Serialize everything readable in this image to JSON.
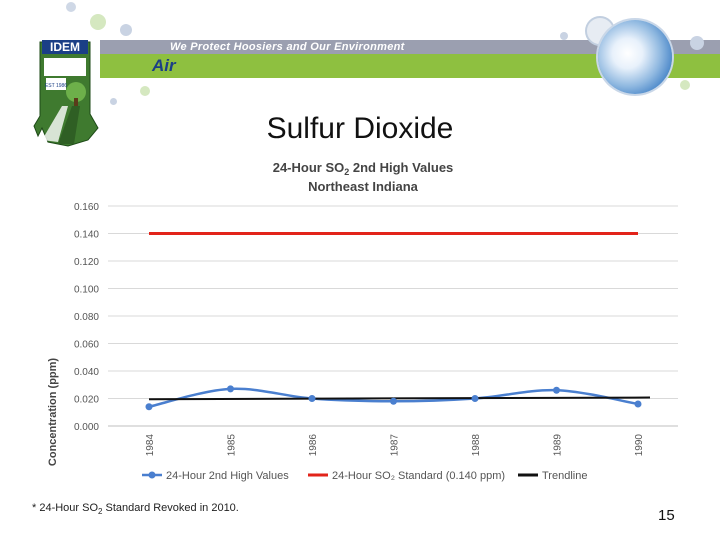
{
  "header": {
    "slogan": "We Protect Hoosiers and Our Environment",
    "org": "IDEM",
    "section": "Air",
    "est": "EST 1986"
  },
  "slide": {
    "title": "Sulfur Dioxide",
    "footnote_prefix": "* 24-Hour SO",
    "footnote_sub": "2",
    "footnote_suffix": " Standard Revoked in 2010.",
    "page_number": "15"
  },
  "chart_data": {
    "type": "line",
    "title_line1_prefix": "24-Hour SO",
    "title_line1_sub": "2",
    "title_line1_suffix": " 2nd High Values",
    "title_line2": "Northeast Indiana",
    "ylabel": "Concentration (ppm)",
    "xlabel": "",
    "ylim": [
      0,
      0.16
    ],
    "yticks": [
      "0.000",
      "0.020",
      "0.040",
      "0.060",
      "0.080",
      "0.100",
      "0.120",
      "0.140",
      "0.160"
    ],
    "categories": [
      "1984",
      "1985",
      "1986",
      "1987",
      "1988",
      "1989",
      "1990"
    ],
    "series": [
      {
        "name": "24-Hour 2nd High Values",
        "values": [
          0.014,
          0.027,
          0.02,
          0.018,
          0.02,
          0.026,
          0.016
        ],
        "color": "#4a7fcf"
      },
      {
        "name": "24-Hour SO₂ Standard (0.140 ppm)",
        "values": [
          0.14,
          0.14,
          0.14,
          0.14,
          0.14,
          0.14,
          0.14
        ],
        "color": "#e2231a"
      },
      {
        "name": "Trendline",
        "values": [
          0.0195,
          0.0197,
          0.0199,
          0.0201,
          0.0203,
          0.0205,
          0.0207
        ],
        "color": "#111111"
      }
    ],
    "grid": true,
    "legend_position": "bottom"
  }
}
